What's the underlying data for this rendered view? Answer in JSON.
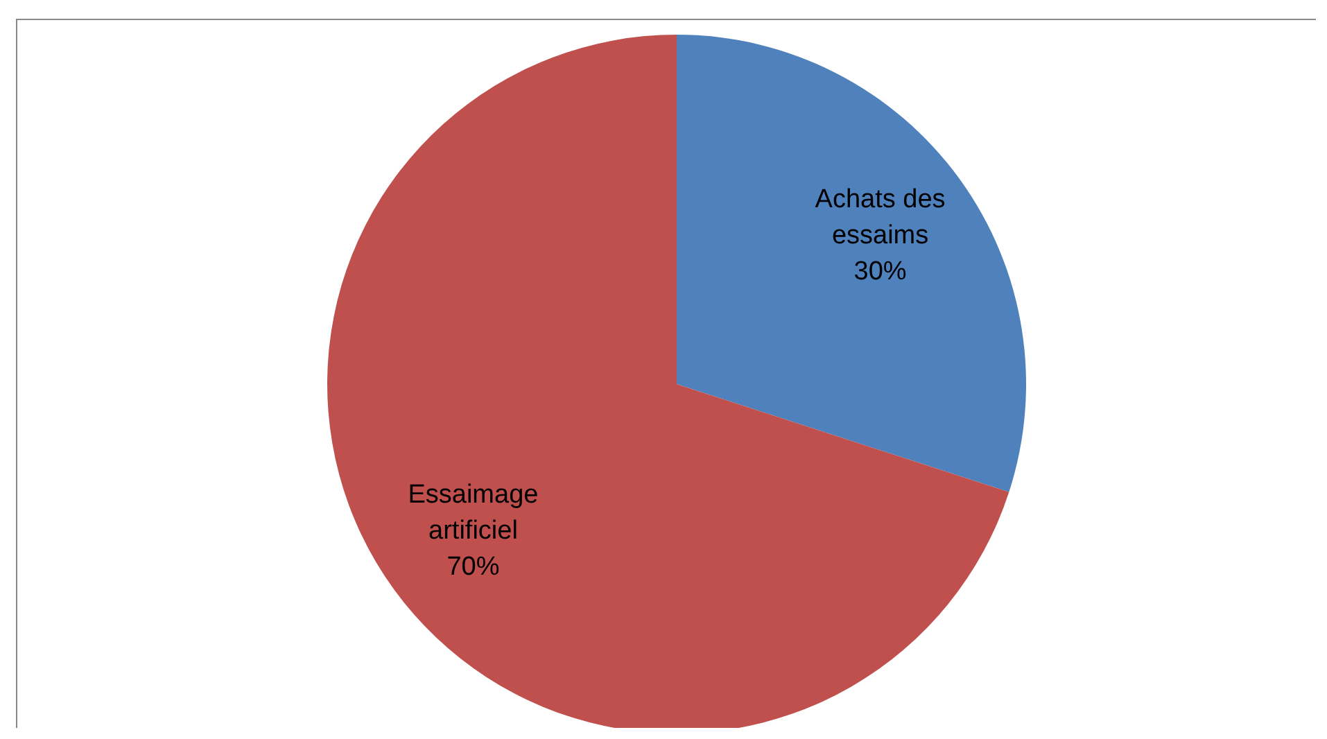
{
  "chart_data": {
    "type": "pie",
    "categories": [
      "Achats des essaims",
      "Essaimage artificiel"
    ],
    "values": [
      30,
      70
    ],
    "colors": [
      "#4f81bd",
      "#c0504d"
    ],
    "value_labels": [
      "30%",
      "70%"
    ]
  }
}
